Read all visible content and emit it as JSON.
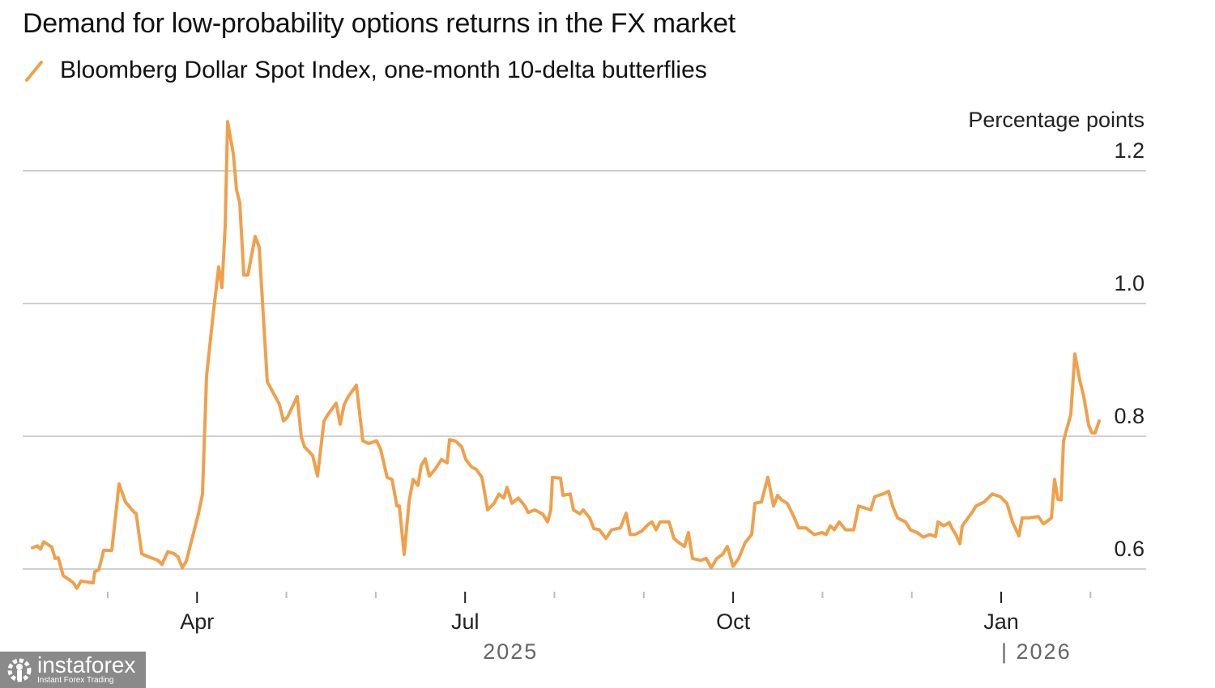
{
  "chart_data": {
    "type": "line",
    "title": "Demand for low-probability options returns in the FX market",
    "legend": [
      {
        "name": "Bloomberg Dollar Spot Index, one-month 10-delta butterflies",
        "color": "#F0A04B"
      }
    ],
    "legend_placement": "top-left",
    "ylabel": "Percentage points",
    "ylim": [
      0.56,
      1.3
    ],
    "yticks": [
      1.2,
      1.0,
      0.8,
      0.6
    ],
    "ytick_labels": [
      "1.2",
      "1.0",
      "0.8",
      "0.6"
    ],
    "grid": true,
    "x_units": "months since 2025-01-01",
    "xlim": [
      1.0,
      13.3
    ],
    "xticks_major": [
      {
        "x": 3,
        "label": "Apr"
      },
      {
        "x": 6,
        "label": "Jul"
      },
      {
        "x": 9,
        "label": "Oct"
      },
      {
        "x": 12,
        "label": "Jan"
      }
    ],
    "xticks_minor": [
      2,
      4,
      5,
      7,
      8,
      10,
      11,
      13
    ],
    "year_labels": [
      {
        "x": 6.2,
        "label": "2025"
      },
      {
        "x": 12.0,
        "label": "| 2026"
      }
    ],
    "series": [
      {
        "name": "Bloomberg Dollar Spot Index, one-month 10-delta butterflies",
        "color": "#F0A04B",
        "x": [
          1.157,
          1.211,
          1.248,
          1.284,
          1.374,
          1.411,
          1.447,
          1.501,
          1.61,
          1.655,
          1.701,
          1.837,
          1.855,
          1.9,
          1.955,
          2.045,
          2.127,
          2.199,
          2.299,
          2.317,
          2.381,
          2.426,
          2.562,
          2.607,
          2.671,
          2.743,
          2.789,
          2.834,
          2.879,
          3.015,
          3.061,
          3.106,
          3.179,
          3.242,
          3.278,
          3.315,
          3.342,
          3.405,
          3.442,
          3.478,
          3.523,
          3.568,
          3.65,
          3.695,
          3.786,
          3.922,
          3.967,
          4.013,
          4.121,
          4.167,
          4.203,
          4.294,
          4.348,
          4.421,
          4.466,
          4.557,
          4.602,
          4.647,
          4.693,
          4.783,
          4.856,
          4.919,
          5.01,
          5.055,
          5.128,
          5.182,
          5.237,
          5.264,
          5.318,
          5.373,
          5.418,
          5.472,
          5.509,
          5.554,
          5.599,
          5.663,
          5.735,
          5.799,
          5.826,
          5.889,
          5.962,
          6.007,
          6.071,
          6.125,
          6.189,
          6.252,
          6.325,
          6.379,
          6.433,
          6.47,
          6.524,
          6.596,
          6.669,
          6.705,
          6.778,
          6.868,
          6.923,
          6.959,
          6.977,
          7.068,
          7.095,
          7.177,
          7.213,
          7.285,
          7.322,
          7.394,
          7.44,
          7.503,
          7.576,
          7.639,
          7.739,
          7.802,
          7.848,
          7.902,
          7.975,
          8.047,
          8.092,
          8.138,
          8.183,
          8.283,
          8.337,
          8.41,
          8.455,
          8.5,
          8.546,
          8.636,
          8.7,
          8.754,
          8.818,
          8.881,
          8.936,
          8.999,
          9.063,
          9.135,
          9.208,
          9.244,
          9.316,
          9.389,
          9.452,
          9.498,
          9.543,
          9.606,
          9.679,
          9.733,
          9.815,
          9.86,
          9.906,
          9.996,
          10.042,
          10.087,
          10.132,
          10.187,
          10.259,
          10.35,
          10.404,
          10.495,
          10.54,
          10.586,
          10.676,
          10.74,
          10.785,
          10.84,
          10.93,
          10.985,
          11.057,
          11.13,
          11.202,
          11.266,
          11.293,
          11.356,
          11.42,
          11.447,
          11.492,
          11.538,
          11.565,
          11.628,
          11.674,
          11.719,
          11.81,
          11.9,
          11.991,
          12.064,
          12.127,
          12.199,
          12.236,
          12.308,
          12.417,
          12.471,
          12.535,
          12.562,
          12.598,
          12.635,
          12.671,
          12.698,
          12.78,
          12.825,
          12.88,
          12.925,
          12.979,
          13.015,
          13.052,
          13.097
        ],
        "y": [
          0.632,
          0.635,
          0.63,
          0.641,
          0.633,
          0.616,
          0.617,
          0.59,
          0.58,
          0.571,
          0.582,
          0.579,
          0.596,
          0.599,
          0.628,
          0.628,
          0.728,
          0.701,
          0.685,
          0.684,
          0.623,
          0.62,
          0.613,
          0.607,
          0.626,
          0.623,
          0.618,
          0.602,
          0.612,
          0.683,
          0.713,
          0.89,
          0.982,
          1.055,
          1.024,
          1.116,
          1.274,
          1.226,
          1.171,
          1.152,
          1.043,
          1.043,
          1.101,
          1.085,
          0.882,
          0.848,
          0.823,
          0.829,
          0.86,
          0.799,
          0.784,
          0.771,
          0.74,
          0.823,
          0.833,
          0.85,
          0.818,
          0.848,
          0.86,
          0.877,
          0.793,
          0.789,
          0.793,
          0.78,
          0.738,
          0.735,
          0.695,
          0.695,
          0.622,
          0.701,
          0.735,
          0.726,
          0.756,
          0.766,
          0.74,
          0.75,
          0.765,
          0.76,
          0.795,
          0.793,
          0.784,
          0.765,
          0.754,
          0.75,
          0.738,
          0.689,
          0.699,
          0.713,
          0.707,
          0.723,
          0.699,
          0.707,
          0.695,
          0.685,
          0.689,
          0.683,
          0.671,
          0.689,
          0.738,
          0.737,
          0.711,
          0.713,
          0.689,
          0.683,
          0.689,
          0.677,
          0.661,
          0.659,
          0.646,
          0.659,
          0.662,
          0.684,
          0.652,
          0.652,
          0.657,
          0.667,
          0.671,
          0.659,
          0.671,
          0.671,
          0.646,
          0.638,
          0.634,
          0.655,
          0.616,
          0.613,
          0.616,
          0.602,
          0.616,
          0.622,
          0.634,
          0.604,
          0.616,
          0.64,
          0.652,
          0.699,
          0.701,
          0.738,
          0.695,
          0.711,
          0.704,
          0.699,
          0.679,
          0.662,
          0.662,
          0.657,
          0.652,
          0.655,
          0.652,
          0.665,
          0.659,
          0.671,
          0.659,
          0.659,
          0.695,
          0.691,
          0.689,
          0.709,
          0.713,
          0.717,
          0.695,
          0.677,
          0.671,
          0.659,
          0.655,
          0.648,
          0.652,
          0.649,
          0.671,
          0.665,
          0.67,
          0.662,
          0.652,
          0.638,
          0.665,
          0.677,
          0.685,
          0.695,
          0.701,
          0.713,
          0.709,
          0.699,
          0.671,
          0.65,
          0.677,
          0.677,
          0.679,
          0.668,
          0.674,
          0.677,
          0.735,
          0.705,
          0.704,
          0.793,
          0.833,
          0.924,
          0.884,
          0.86,
          0.817,
          0.805,
          0.805,
          0.823
        ]
      }
    ]
  },
  "watermark": {
    "brand": "instaforex",
    "tagline": "Instant Forex Trading"
  }
}
